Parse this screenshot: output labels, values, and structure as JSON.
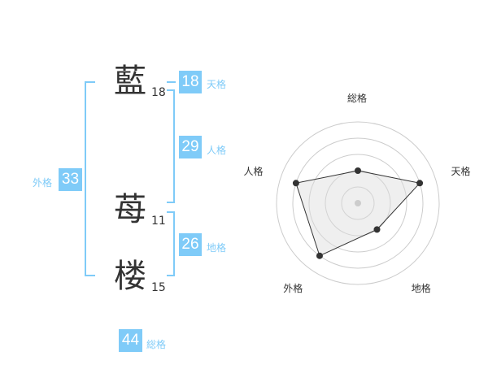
{
  "name": [
    {
      "char": "藍",
      "strokes": "18"
    },
    {
      "char": "苺",
      "strokes": "11"
    },
    {
      "char": "楼",
      "strokes": "15"
    }
  ],
  "fortunes": {
    "tenkaku": {
      "label": "天格",
      "value": "18"
    },
    "jinkaku": {
      "label": "人格",
      "value": "29"
    },
    "gaikaku": {
      "label": "外格",
      "value": "33"
    },
    "chikaku": {
      "label": "地格",
      "value": "26"
    },
    "soukaku": {
      "label": "総格",
      "value": "44"
    }
  },
  "colors": {
    "accent": "#7fcbf8",
    "fill": "#f0f0f0",
    "line": "#333333"
  },
  "chart_data": {
    "type": "radar",
    "axes": [
      "総格",
      "天格",
      "地格",
      "外格",
      "人格"
    ],
    "values": [
      2,
      4,
      2,
      4,
      4
    ],
    "range": [
      0,
      5
    ],
    "rings": 5
  }
}
